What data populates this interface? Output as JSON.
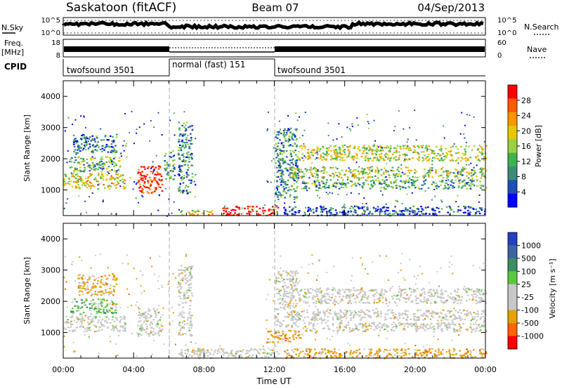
{
  "header": {
    "station": "Saskatoon (fitACF)",
    "beam": "Beam 07",
    "date": "04/Sep/2013"
  },
  "noise_panel": {
    "left_label": "N.Sky",
    "left_ticks": [
      "10^5",
      "10^0"
    ],
    "right_ticks": [
      "10^5",
      "10^0"
    ],
    "right_label": "N.Search"
  },
  "freq_panel": {
    "left_label_top": "Freq.",
    "left_label_bottom": "[MHz]",
    "left_ticks": [
      "18",
      "8"
    ],
    "right_ticks": [
      "60",
      "0"
    ],
    "right_label": "Nave"
  },
  "cpid": {
    "label": "CPID",
    "segments": [
      {
        "name": "twofsound 3501",
        "start_h": 0,
        "end_h": 6
      },
      {
        "name": "normal (fast) 151",
        "start_h": 6,
        "end_h": 12
      },
      {
        "name": "twofsound 3501",
        "start_h": 12,
        "end_h": 24
      }
    ]
  },
  "chart_data": [
    {
      "type": "heatmap",
      "title": "",
      "xlabel": "",
      "ylabel": "Slant Range [km]",
      "xlim": [
        0,
        24
      ],
      "ylim": [
        180,
        4500
      ],
      "yticks": [
        "1000",
        "2000",
        "3000",
        "4000"
      ],
      "colorbar_label": "Power [dB]",
      "colorbar_ticks": [
        "28",
        "24",
        "20",
        "16",
        "12",
        "8",
        "4"
      ],
      "colorbar_colors": [
        "#ff0000",
        "#ff5a00",
        "#ff9600",
        "#e6c800",
        "#9ad23c",
        "#3cb450",
        "#3c8c78",
        "#1e50b4",
        "#0000ff"
      ],
      "echo_regions": [
        {
          "t0": 0.0,
          "t1": 3.5,
          "r0": 1050,
          "r1": 1550,
          "level": 0.6
        },
        {
          "t0": 0.3,
          "t1": 3.2,
          "r0": 1600,
          "r1": 2100,
          "level": 0.4
        },
        {
          "t0": 0.5,
          "t1": 3.0,
          "r0": 2200,
          "r1": 2800,
          "level": 0.25
        },
        {
          "t0": 4.2,
          "t1": 5.6,
          "r0": 900,
          "r1": 1800,
          "level": 0.9
        },
        {
          "t0": 5.7,
          "t1": 6.3,
          "r0": 1300,
          "r1": 2300,
          "level": 0.35
        },
        {
          "t0": 6.5,
          "t1": 7.3,
          "r0": 900,
          "r1": 3200,
          "level": 0.3
        },
        {
          "t0": 6.5,
          "t1": 8.5,
          "r0": 220,
          "r1": 380,
          "level": 0.6
        },
        {
          "t0": 9.0,
          "t1": 12.2,
          "r0": 200,
          "r1": 500,
          "level": 1.0
        },
        {
          "t0": 12.0,
          "t1": 13.3,
          "r0": 700,
          "r1": 3000,
          "level": 0.3
        },
        {
          "t0": 13.3,
          "t1": 24.0,
          "r0": 1950,
          "r1": 2450,
          "level": 0.55
        },
        {
          "t0": 12.8,
          "t1": 24.0,
          "r0": 1400,
          "r1": 1750,
          "level": 0.5
        },
        {
          "t0": 13.5,
          "t1": 24.0,
          "r0": 1050,
          "r1": 1350,
          "level": 0.35
        },
        {
          "t0": 12.5,
          "t1": 24.0,
          "r0": 200,
          "r1": 500,
          "level": 0.15
        }
      ]
    },
    {
      "type": "heatmap",
      "title": "",
      "xlabel": "Time UT",
      "ylabel": "Slant Range [km]",
      "xlim": [
        0,
        24
      ],
      "ylim": [
        180,
        4500
      ],
      "xticks": [
        "00:00",
        "04:00",
        "08:00",
        "12:00",
        "16:00",
        "20:00",
        "00:00"
      ],
      "yticks": [
        "1000",
        "2000",
        "3000",
        "4000"
      ],
      "colorbar_label": "Velocity [m s⁻¹]",
      "colorbar_ticks": [
        "1000",
        "500",
        "100",
        "25",
        "-25",
        "-100",
        "-500",
        "-1000"
      ],
      "colorbar_colors": [
        "#2040c0",
        "#3c64a0",
        "#3c8c64",
        "#5ac83c",
        "#c8c8c8",
        "#c8c8c8",
        "#e6a000",
        "#ff6400",
        "#ff0000"
      ],
      "echo_regions": [
        {
          "t0": 0.0,
          "t1": 3.5,
          "r0": 1050,
          "r1": 1550,
          "vel": "gray"
        },
        {
          "t0": 0.4,
          "t1": 3.0,
          "r0": 1600,
          "r1": 2100,
          "vel": "green"
        },
        {
          "t0": 0.8,
          "t1": 3.0,
          "r0": 2200,
          "r1": 2900,
          "vel": "orange"
        },
        {
          "t0": 4.2,
          "t1": 5.6,
          "r0": 900,
          "r1": 1800,
          "vel": "gray"
        },
        {
          "t0": 6.5,
          "t1": 7.3,
          "r0": 900,
          "r1": 3200,
          "vel": "gray"
        },
        {
          "t0": 6.5,
          "t1": 12.2,
          "r0": 200,
          "r1": 500,
          "vel": "gray"
        },
        {
          "t0": 7.2,
          "t1": 8.2,
          "r0": 380,
          "r1": 520,
          "vel": "orange"
        },
        {
          "t0": 11.5,
          "t1": 13.5,
          "r0": 700,
          "r1": 1100,
          "vel": "orange"
        },
        {
          "t0": 12.0,
          "t1": 13.3,
          "r0": 1200,
          "r1": 3000,
          "vel": "gray"
        },
        {
          "t0": 13.3,
          "t1": 24.0,
          "r0": 1950,
          "r1": 2450,
          "vel": "gray"
        },
        {
          "t0": 12.8,
          "t1": 24.0,
          "r0": 1400,
          "r1": 1750,
          "vel": "gray"
        },
        {
          "t0": 13.5,
          "t1": 24.0,
          "r0": 1050,
          "r1": 1350,
          "vel": "gray"
        },
        {
          "t0": 12.5,
          "t1": 24.0,
          "r0": 200,
          "r1": 500,
          "vel": "orange"
        }
      ]
    }
  ]
}
